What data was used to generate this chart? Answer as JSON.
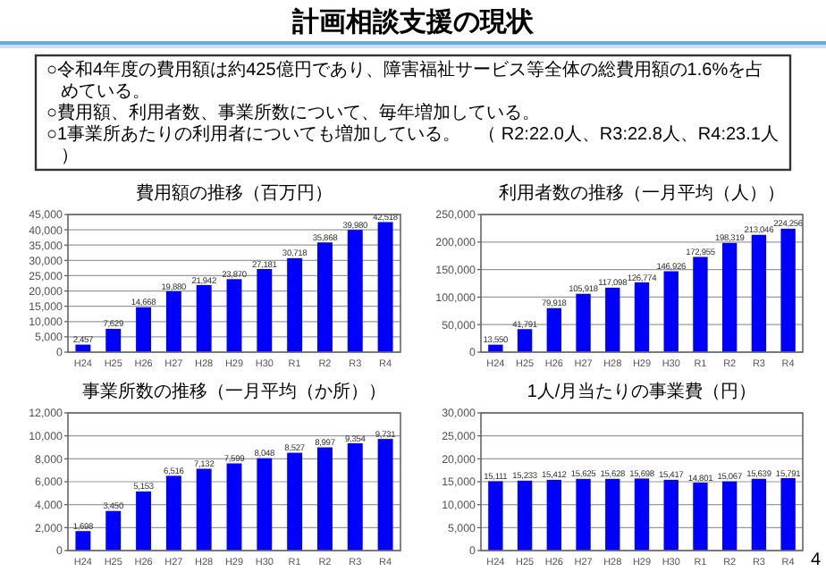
{
  "chart_data": [
    {
      "type": "other",
      "title": "計画相談支援の現状",
      "annotations": [
        "○令和4年度の費用額は約425億円であり、障害福祉サービス等全体の総費用額の1.6%を占めている。",
        "○費用額、利用者数、事業所数について、毎年増加している。",
        "○1事業所あたりの利用者についても増加している。　（ R2:22.0人、R3:22.8人、R4:23.1人）",
        "4"
      ]
    },
    {
      "type": "bar",
      "title": "費用額の推移（百万円）",
      "categories": [
        "H24",
        "H25",
        "H26",
        "H27",
        "H28",
        "H29",
        "H30",
        "R1",
        "R2",
        "R3",
        "R4"
      ],
      "values": [
        2457,
        7629,
        14668,
        19880,
        21942,
        23870,
        27181,
        30718,
        35868,
        39980,
        42518
      ],
      "value_labels": [
        "2,457",
        "7,629",
        "14,668",
        "19,880",
        "21,942",
        "23,870",
        "27,181",
        "30,718",
        "35,868",
        "39,980",
        "42,518"
      ],
      "color": "#0000ff",
      "ylim": [
        0,
        45000
      ],
      "yticks": [
        {
          "value": 0,
          "label": "0"
        },
        {
          "value": 5000,
          "label": "5,000"
        },
        {
          "value": 10000,
          "label": "10,000"
        },
        {
          "value": 15000,
          "label": "15,000"
        },
        {
          "value": 20000,
          "label": "20,000"
        },
        {
          "value": 25000,
          "label": "25,000"
        },
        {
          "value": 30000,
          "label": "30,000"
        },
        {
          "value": 35000,
          "label": "35,000"
        },
        {
          "value": 40000,
          "label": "40,000"
        },
        {
          "value": 45000,
          "label": "45,000"
        }
      ],
      "grid": "y"
    },
    {
      "type": "bar",
      "title": "利用者数の推移（一月平均（人））",
      "categories": [
        "H24",
        "H25",
        "H26",
        "H27",
        "H28",
        "H29",
        "H30",
        "R1",
        "R2",
        "R3",
        "R4"
      ],
      "values": [
        13550,
        41791,
        79918,
        105918,
        117098,
        126774,
        146926,
        172955,
        198319,
        213046,
        224256
      ],
      "value_labels": [
        "13,550",
        "41,791",
        "79,918",
        "105,918",
        "117,098",
        "126,774",
        "146,926",
        "172,955",
        "198,319",
        "213,046",
        "224,256"
      ],
      "color": "#0000ff",
      "ylim": [
        0,
        250000
      ],
      "yticks": [
        {
          "value": 0,
          "label": "0"
        },
        {
          "value": 50000,
          "label": "50,000"
        },
        {
          "value": 100000,
          "label": "100,000"
        },
        {
          "value": 150000,
          "label": "150,000"
        },
        {
          "value": 200000,
          "label": "200,000"
        },
        {
          "value": 250000,
          "label": "250,000"
        }
      ],
      "grid": "y"
    },
    {
      "type": "bar",
      "title": "事業所数の推移（一月平均（か所））",
      "categories": [
        "H24",
        "H25",
        "H26",
        "H27",
        "H28",
        "H29",
        "H30",
        "R1",
        "R2",
        "R3",
        "R4"
      ],
      "values": [
        1698,
        3450,
        5153,
        6516,
        7132,
        7599,
        8048,
        8527,
        8997,
        9354,
        9731
      ],
      "value_labels": [
        "1,698",
        "3,450",
        "5,153",
        "6,516",
        "7,132",
        "7,599",
        "8,048",
        "8,527",
        "8,997",
        "9,354",
        "9,731"
      ],
      "color": "#0000ff",
      "ylim": [
        0,
        12000
      ],
      "yticks": [
        {
          "value": 0,
          "label": "0"
        },
        {
          "value": 2000,
          "label": "2,000"
        },
        {
          "value": 4000,
          "label": "4,000"
        },
        {
          "value": 6000,
          "label": "6,000"
        },
        {
          "value": 8000,
          "label": "8,000"
        },
        {
          "value": 10000,
          "label": "10,000"
        },
        {
          "value": 12000,
          "label": "12,000"
        }
      ],
      "grid": "y"
    },
    {
      "type": "bar",
      "title": "1人/月当たりの事業費（円）",
      "categories": [
        "H24",
        "H25",
        "H26",
        "H27",
        "H28",
        "H29",
        "H30",
        "R1",
        "R2",
        "R3",
        "R4"
      ],
      "values": [
        15111,
        15233,
        15412,
        15625,
        15628,
        15698,
        15417,
        14801,
        15067,
        15639,
        15791
      ],
      "value_labels": [
        "15,111",
        "15,233",
        "15,412",
        "15,625",
        "15,628",
        "15,698",
        "15,417",
        "14,801",
        "15,067",
        "15,639",
        "15,791"
      ],
      "color": "#0000ff",
      "ylim": [
        0,
        30000
      ],
      "yticks": [
        {
          "value": 0,
          "label": "0"
        },
        {
          "value": 5000,
          "label": "5,000"
        },
        {
          "value": 10000,
          "label": "10,000"
        },
        {
          "value": 15000,
          "label": "15,000"
        },
        {
          "value": 20000,
          "label": "20,000"
        },
        {
          "value": 25000,
          "label": "25,000"
        },
        {
          "value": 30000,
          "label": "30,000"
        }
      ],
      "grid": "y"
    }
  ]
}
